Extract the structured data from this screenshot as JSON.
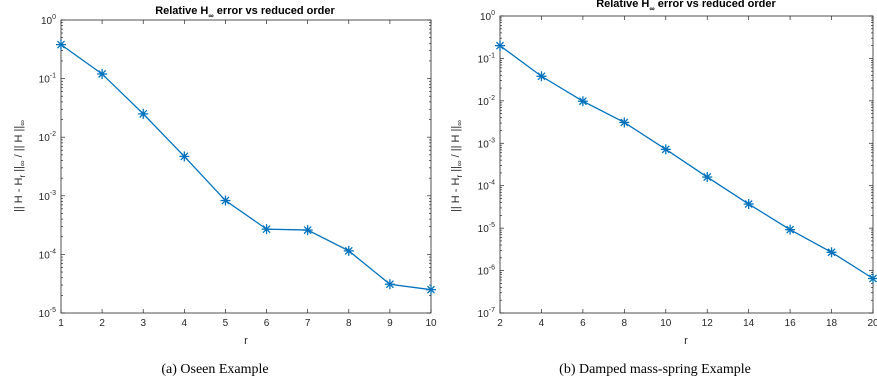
{
  "colors": {
    "series": "#0072BD",
    "axis": "#262626"
  },
  "chart_data": [
    {
      "type": "line",
      "yscale": "log",
      "title": "Relative H∞ error vs reduced order",
      "title_parts": {
        "main": "Relative H",
        "sub": "∞",
        "rest": " error vs reduced order"
      },
      "xlabel": "r",
      "ylabel": "|| H - Hr ||∞ / || H ||∞",
      "ylabel_parts": {
        "a": "|| H - H",
        "sub1": "r",
        "b": " ||",
        "sub2": "∞",
        "c": " / || H ||",
        "sub3": "∞"
      },
      "xlim": [
        1,
        10
      ],
      "ylim": [
        1e-05,
        1
      ],
      "xticks": [
        1,
        2,
        3,
        4,
        5,
        6,
        7,
        8,
        9,
        10
      ],
      "yticks_exp": [
        -5,
        -4,
        -3,
        -2,
        -1,
        0
      ],
      "grid": false,
      "marker": "asterisk",
      "caption": "(a) Oseen Example",
      "series": [
        {
          "x": [
            1,
            2,
            3,
            4,
            5,
            6,
            7,
            8,
            9,
            10
          ],
          "y": [
            0.38,
            0.12,
            0.025,
            0.0047,
            0.00083,
            0.00027,
            0.00026,
            0.000115,
            3.1e-05,
            2.5e-05
          ]
        }
      ]
    },
    {
      "type": "line",
      "yscale": "log",
      "title": "Relative H∞ error vs reduced order",
      "title_parts": {
        "main": "Relative H",
        "sub": "∞",
        "rest": " error vs reduced order"
      },
      "xlabel": "r",
      "ylabel": "|| H - Hr ||∞ / || H ||∞",
      "ylabel_parts": {
        "a": "|| H - H",
        "sub1": "r",
        "b": " ||",
        "sub2": "∞",
        "c": " / || H ||",
        "sub3": "∞"
      },
      "xlim": [
        2,
        20
      ],
      "ylim": [
        1e-07,
        1
      ],
      "xticks": [
        2,
        4,
        6,
        8,
        10,
        12,
        14,
        16,
        18,
        20
      ],
      "yticks_exp": [
        -7,
        -6,
        -5,
        -4,
        -3,
        -2,
        -1,
        0
      ],
      "grid": false,
      "marker": "asterisk",
      "caption": "(b) Damped mass-spring Example",
      "series": [
        {
          "x": [
            2,
            4,
            6,
            8,
            10,
            12,
            14,
            16,
            18,
            20
          ],
          "y": [
            0.2,
            0.038,
            0.0098,
            0.0031,
            0.00072,
            0.00016,
            3.7e-05,
            9.2e-06,
            2.7e-06,
            6.5e-07
          ]
        }
      ]
    }
  ]
}
